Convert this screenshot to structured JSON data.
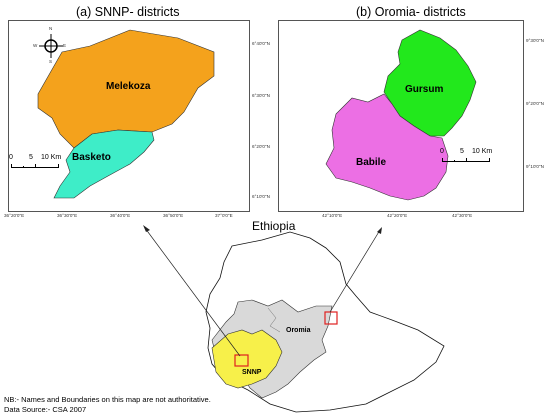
{
  "panels": {
    "snnp": {
      "title": "(a) SNNP- districts",
      "districts": [
        {
          "name": "Melekoza",
          "color": "#F4A21C"
        },
        {
          "name": "Basketo",
          "color": "#3EEDC8"
        }
      ],
      "scale": {
        "ticks": [
          "0",
          "5",
          "10 Km"
        ]
      },
      "lon_ticks": [
        "36°20'0\"E",
        "36°30'0\"E",
        "36°40'0\"E",
        "36°50'0\"E",
        "37°0'0\"E"
      ],
      "lat_ticks": [
        "6°40'0\"N",
        "6°30'0\"N",
        "6°20'0\"N",
        "6°10'0\"N"
      ],
      "north_arrow": {
        "n": "N",
        "s": "S",
        "e": "E",
        "w": "W"
      }
    },
    "oromia": {
      "title": "(b) Oromia- districts",
      "districts": [
        {
          "name": "Gursum",
          "color": "#22E81C"
        },
        {
          "name": "Babile",
          "color": "#EC6FE4"
        }
      ],
      "scale": {
        "ticks": [
          "0",
          "5",
          "10 Km"
        ]
      },
      "lon_ticks": [
        "42°10'0\"E",
        "42°20'0\"E",
        "42°30'0\"E"
      ],
      "lat_ticks": [
        "9°30'0\"N",
        "9°20'0\"N",
        "9°10'0\"N"
      ]
    }
  },
  "ethiopia": {
    "title": "Ethiopia",
    "regions": [
      {
        "name": "SNNP",
        "color": "#F7F04A"
      },
      {
        "name": "Oromia",
        "color": "#D9D9D9"
      }
    ],
    "highlight_color": "#E02020"
  },
  "footnote": {
    "disclaimer": "NB:- Names and Boundaries on this map are not authoritative.",
    "source": "Data Source:- CSA 2007"
  }
}
